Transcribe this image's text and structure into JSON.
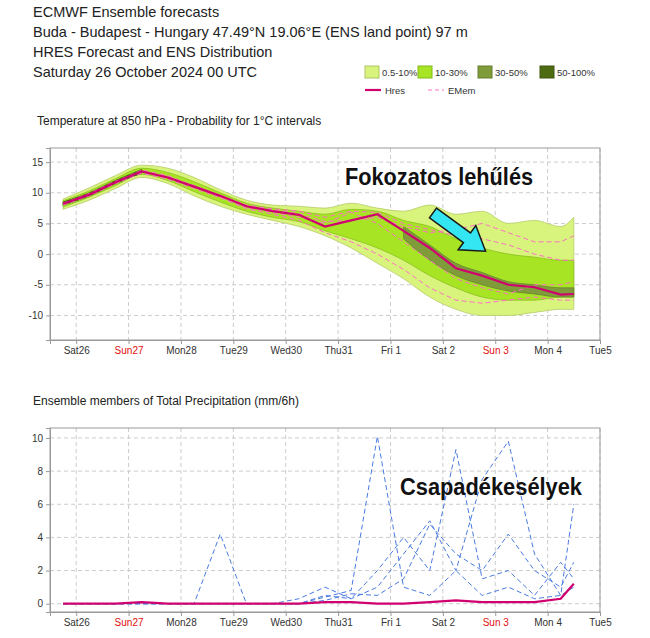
{
  "header": [
    "ECMWF Ensemble forecasts",
    "Buda - Budapest - Hungary 47.49°N 19.06°E (ENS land point) 97 m",
    "HRES Forecast and ENS Distribution",
    "Saturday 26 October 2024 00 UTC"
  ],
  "chart_data": [
    {
      "type": "line",
      "title": "Temperature at 850 hPa - Probability for 1°C intervals",
      "annotations": [
        "Fokozatos lehűlés"
      ],
      "legend": "top-right",
      "grid": true,
      "x": [
        0.25,
        0.75,
        1.25,
        1.75,
        2.25,
        2.75,
        3.25,
        3.75,
        4.25,
        4.75,
        5.25,
        5.75,
        6.25,
        6.75,
        7.25,
        7.75,
        8.25,
        8.75,
        9.25,
        9.75,
        10
      ],
      "xlim": [
        0,
        10.5
      ],
      "xticks": [
        {
          "value": 0.5,
          "label": "Sat26"
        },
        {
          "value": 1.5,
          "label": "Sun27"
        },
        {
          "value": 2.5,
          "label": "Mon28"
        },
        {
          "value": 3.5,
          "label": "Tue29"
        },
        {
          "value": 4.5,
          "label": "Wed30"
        },
        {
          "value": 5.5,
          "label": "Thu31"
        },
        {
          "value": 6.5,
          "label": "Fri 1"
        },
        {
          "value": 7.5,
          "label": "Sat 2"
        },
        {
          "value": 8.5,
          "label": "Sun 3"
        },
        {
          "value": 9.5,
          "label": "Mon 4"
        },
        {
          "value": 10.5,
          "label": "Tue5"
        }
      ],
      "ylim": [
        -14,
        17.3
      ],
      "yticks": [
        -10,
        -5,
        0,
        5,
        10,
        15
      ],
      "series": [
        {
          "name": "0.5-10%",
          "type": "area",
          "color": "#d8f47c",
          "lower": [
            7.3,
            8.8,
            10.7,
            12.5,
            11.5,
            9.5,
            7.8,
            6.5,
            5.5,
            4.5,
            3,
            1,
            -1.5,
            -4,
            -7,
            -9,
            -10,
            -10,
            -9.5,
            -9,
            -9
          ],
          "upper": [
            9,
            10.8,
            12.8,
            14.5,
            14,
            12.5,
            10.5,
            8.8,
            8,
            7.8,
            7.5,
            8.3,
            7.5,
            7,
            8,
            6.5,
            7,
            5,
            5.5,
            4.5,
            6
          ]
        },
        {
          "name": "10-30%",
          "type": "area",
          "color": "#a6e424",
          "lower": [
            7.7,
            9.3,
            11.2,
            13,
            12,
            10.2,
            8.5,
            7,
            6,
            5.3,
            3.8,
            2.5,
            1,
            -1,
            -3.5,
            -5.5,
            -7,
            -7.5,
            -7.5,
            -7,
            -7
          ],
          "upper": [
            8.7,
            10.3,
            12.3,
            14,
            13.3,
            11.8,
            10,
            8.3,
            7.5,
            7,
            6.5,
            7.3,
            7,
            5.5,
            4.5,
            2.5,
            1,
            0,
            -0.5,
            -1,
            -1
          ]
        },
        {
          "name": "30-50%",
          "type": "area",
          "color": "#7f9b3a",
          "lower": [
            null,
            null,
            null,
            null,
            null,
            null,
            null,
            null,
            null,
            null,
            null,
            null,
            null,
            2.5,
            -1,
            -3.5,
            -5,
            -6,
            -6.5,
            -7,
            -7
          ],
          "upper": [
            null,
            null,
            null,
            null,
            null,
            null,
            null,
            null,
            null,
            null,
            null,
            null,
            null,
            4.5,
            1.5,
            -1.5,
            -3,
            -4.5,
            -5,
            -5.5,
            -5.5
          ]
        },
        {
          "name": "50-100%",
          "type": "area",
          "color": "#4d6b12",
          "lower": [
            8,
            9.5,
            11.5,
            13.2,
            null,
            null,
            null,
            null,
            null,
            null,
            null,
            null,
            null,
            null,
            null,
            null,
            null,
            null,
            null,
            null,
            null
          ],
          "upper": [
            8.5,
            10,
            12,
            13.8,
            null,
            null,
            null,
            null,
            null,
            null,
            null,
            null,
            null,
            null,
            null,
            null,
            null,
            null,
            null,
            null,
            null
          ]
        },
        {
          "name": "Hres",
          "type": "line",
          "line_style": "solid",
          "color": "#d0006f",
          "values": [
            8.2,
            9.7,
            11.7,
            13.5,
            12.5,
            11,
            9.5,
            7.8,
            7,
            6.4,
            4.5,
            5.5,
            6.5,
            3.8,
            1,
            -2.3,
            -3.5,
            -5,
            -5.4,
            -6.6,
            -6.5
          ]
        },
        {
          "name": "EMem",
          "type": "line",
          "line_style": "dashed",
          "color": "#ff70c6",
          "values": [
            [
              8.3,
              9.9,
              11.9,
              13.4,
              12.7,
              11.2,
              9.6,
              8,
              7.4,
              7,
              6,
              7,
              6.8,
              5,
              4,
              3,
              2.5,
              1.5,
              0,
              -1,
              -1
            ],
            [
              8,
              9.5,
              11.5,
              13.2,
              12.2,
              10.7,
              9.2,
              7.4,
              6.5,
              5.5,
              3.5,
              2,
              0,
              -2.5,
              -5.5,
              -7.5,
              -8,
              -7.5,
              -7,
              -7.5,
              -7.5
            ],
            [
              8.1,
              9.8,
              11.8,
              13.7,
              12.8,
              11,
              9.3,
              7.6,
              6.8,
              6,
              5,
              6.8,
              5,
              2,
              -1,
              -4,
              -5.5,
              -6.5,
              -5,
              -5,
              -4.5
            ],
            [
              8.2,
              9.6,
              11.6,
              13.5,
              12.4,
              11,
              9.5,
              7.9,
              7.2,
              6.6,
              5.3,
              5.5,
              6,
              4.5,
              3.5,
              4,
              5,
              3.5,
              2,
              2,
              3
            ]
          ]
        }
      ]
    },
    {
      "type": "line",
      "title": "Ensemble members of Total Precipitation (mm/6h)",
      "annotations": [
        "Csapadékesélyek"
      ],
      "grid": true,
      "x": [
        0.25,
        0.75,
        1.25,
        1.75,
        2.25,
        2.75,
        3.25,
        3.75,
        4.25,
        4.75,
        5.25,
        5.75,
        6.25,
        6.75,
        7.25,
        7.75,
        8.25,
        8.75,
        9.25,
        9.75,
        10
      ],
      "xlim": [
        0,
        10.5
      ],
      "xticks": [
        {
          "value": 0.5,
          "label": "Sat26"
        },
        {
          "value": 1.5,
          "label": "Sun27"
        },
        {
          "value": 2.5,
          "label": "Mon28"
        },
        {
          "value": 3.5,
          "label": "Tue29"
        },
        {
          "value": 4.5,
          "label": "Wed30"
        },
        {
          "value": 5.5,
          "label": "Thu31"
        },
        {
          "value": 6.5,
          "label": "Fri 1"
        },
        {
          "value": 7.5,
          "label": "Sat 2"
        },
        {
          "value": 8.5,
          "label": "Sun 3"
        },
        {
          "value": 9.5,
          "label": "Mon 4"
        },
        {
          "value": 10.5,
          "label": "Tue5"
        }
      ],
      "ylim": [
        -0.5,
        10.6
      ],
      "yticks": [
        0,
        2,
        4,
        6,
        8,
        10
      ],
      "series": [
        {
          "type": "line",
          "line_style": "solid",
          "color": "#d0006f",
          "values": [
            0,
            0,
            0,
            0.1,
            0,
            0,
            0,
            0,
            0,
            0,
            0.1,
            0.1,
            0,
            0,
            0.1,
            0.2,
            0.1,
            0.1,
            0.1,
            0.3,
            1.2
          ]
        },
        {
          "type": "line",
          "line_style": "dashed",
          "color": "#4a7be0",
          "values": [
            [
              0,
              0,
              0,
              0,
              0,
              0,
              4.2,
              0,
              0,
              0,
              0.4,
              0.8,
              10.1,
              1,
              0.5,
              2,
              0.5,
              1,
              0.3,
              0.5,
              1
            ],
            [
              0,
              0,
              0,
              0,
              0,
              0,
              0,
              0,
              0,
              0.3,
              1,
              0.3,
              2,
              4,
              2,
              9.3,
              1.5,
              2,
              0.5,
              2.5,
              1.5
            ],
            [
              0,
              0,
              0,
              0,
              0,
              0,
              0,
              0,
              0,
              0,
              0.5,
              0.3,
              1,
              3,
              5,
              2,
              7.5,
              9.8,
              3,
              0.5,
              6
            ],
            [
              0,
              0,
              0,
              0,
              0,
              0,
              0,
              0,
              0,
              0,
              0.2,
              0.6,
              0.5,
              1.5,
              4.8,
              3,
              2,
              4.2,
              2,
              1,
              2.5
            ]
          ]
        }
      ]
    }
  ]
}
